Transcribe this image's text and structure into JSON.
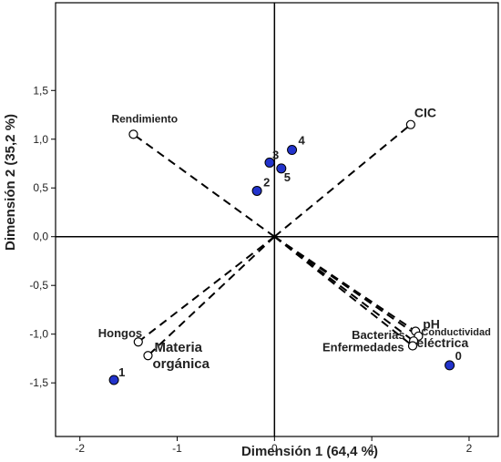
{
  "chart_data": {
    "type": "scatter",
    "xlabel": "Dimensión 1 (64,4 %)",
    "ylabel": "Dimensión 2 (35,2 %)",
    "xlim": [
      -2.25,
      2.3
    ],
    "ylim": [
      -2.05,
      2.4
    ],
    "xticks": [
      -2,
      -1,
      0,
      1,
      2
    ],
    "yticks": [
      -1.5,
      -1.0,
      -0.5,
      0.0,
      0.5,
      1.0,
      1.5
    ],
    "xtick_labels": [
      "-2",
      "-1",
      "0",
      "1",
      "2"
    ],
    "ytick_labels": [
      "-1,5",
      "-1,0",
      "-0,5",
      "0,0",
      "0,5",
      "1,0",
      "1,5"
    ],
    "grid": false,
    "variables": [
      {
        "label": "Rendimiento",
        "x": -1.45,
        "y": 1.05
      },
      {
        "label": "CIC",
        "x": 1.4,
        "y": 1.15
      },
      {
        "label": "Hongos",
        "x": -1.4,
        "y": -1.08
      },
      {
        "label": "Materia orgánica",
        "x": -1.3,
        "y": -1.22
      },
      {
        "label": "pH",
        "x": 1.45,
        "y": -0.97
      },
      {
        "label": "Conductividad eléctrica",
        "x": 1.48,
        "y": -1.02
      },
      {
        "label": "Bacterias",
        "x": 1.43,
        "y": -1.07
      },
      {
        "label": "Enfermedades",
        "x": 1.42,
        "y": -1.12
      }
    ],
    "observations": [
      {
        "label": "0",
        "x": 1.8,
        "y": -1.32
      },
      {
        "label": "1",
        "x": -1.65,
        "y": -1.47
      },
      {
        "label": "2",
        "x": -0.18,
        "y": 0.47
      },
      {
        "label": "3",
        "x": -0.05,
        "y": 0.76
      },
      {
        "label": "4",
        "x": 0.18,
        "y": 0.89
      },
      {
        "label": "5",
        "x": 0.07,
        "y": 0.7
      }
    ],
    "colors": {
      "observation_fill": "#2233cc",
      "variable_fill": "#ffffff",
      "line": "#000000"
    }
  }
}
